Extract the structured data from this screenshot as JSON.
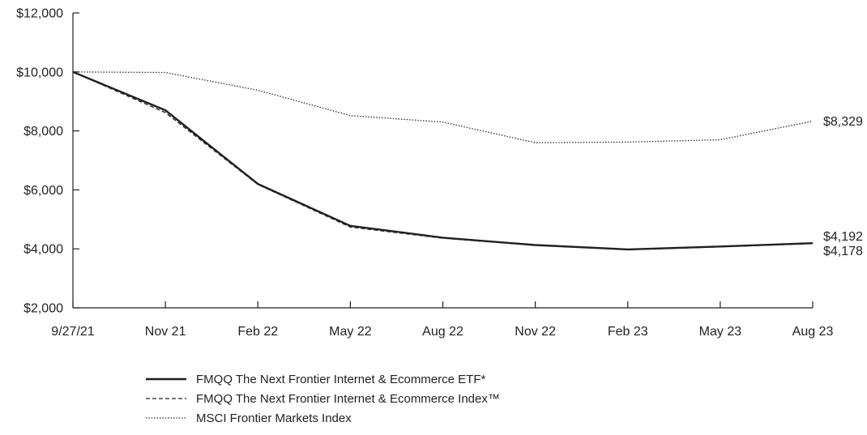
{
  "chart_data": {
    "type": "line",
    "title": "",
    "xlabel": "",
    "ylabel": "",
    "x_ticks": [
      "9/27/21",
      "Nov 21",
      "Feb 22",
      "May 22",
      "Aug 22",
      "Nov 22",
      "Feb 23",
      "May 23",
      "Aug 23"
    ],
    "y_ticks": [
      "$2,000",
      "$4,000",
      "$6,000",
      "$8,000",
      "$10,000",
      "$12,000"
    ],
    "ylim": [
      2000,
      12000
    ],
    "grid": false,
    "legend_position": "bottom-left",
    "series": [
      {
        "name": "FMQQ The Next Frontier Internet & Ecommerce ETF*",
        "style": "solid",
        "color": "#231f20",
        "values": [
          10000,
          8700,
          6200,
          4780,
          4380,
          4130,
          3980,
          4080,
          4192
        ],
        "end_label": "$4,192"
      },
      {
        "name": "FMQQ The Next Frontier Internet & Ecommerce Index™",
        "style": "dashed",
        "color": "#231f20",
        "values": [
          10000,
          8620,
          6180,
          4740,
          4360,
          4120,
          3970,
          4070,
          4178
        ],
        "end_label": "$4,178"
      },
      {
        "name": "MSCI Frontier Markets Index",
        "style": "dotted",
        "color": "#231f20",
        "values": [
          10000,
          9980,
          9380,
          8520,
          8300,
          7600,
          7620,
          7700,
          8329
        ],
        "end_label": "$8,329"
      }
    ]
  }
}
